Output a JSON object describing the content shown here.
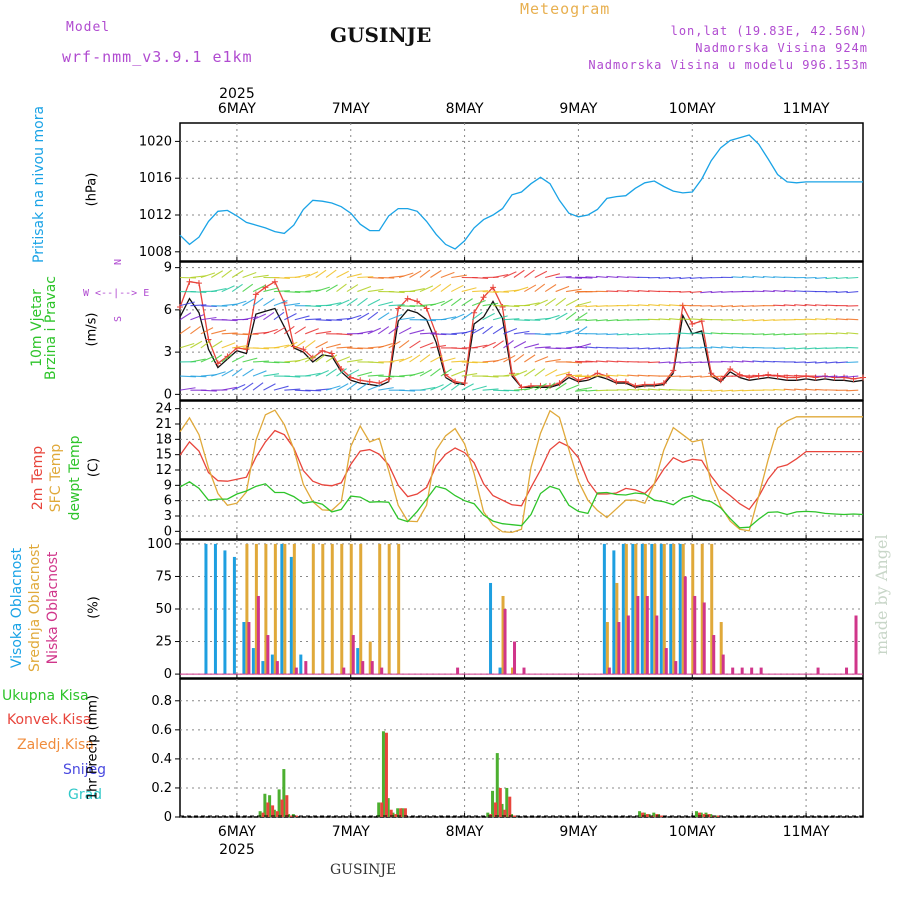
{
  "header": {
    "model_label": "Model",
    "model_name": "wrf-nmm_v3.9.1 e1km",
    "location": "GUSINJE",
    "product": "Meteogram",
    "coords": "lon,lat (19.83E, 42.56N)",
    "elevation": "Nadmorska Visina 924m",
    "model_elevation": "Nadmorska Visina u modelu 996.153m",
    "footer": "GUSINJE",
    "watermark": "made by Angel"
  },
  "time_axis": {
    "year": "2025",
    "days": [
      "6MAY",
      "7MAY",
      "8MAY",
      "9MAY",
      "10MAY",
      "11MAY"
    ],
    "range_hours": [
      0,
      144
    ]
  },
  "colors": {
    "pressure": "#1aa3e6",
    "temp_2m": "#e8453c",
    "temp_sfc": "#e0a93a",
    "dewpoint": "#2ec42a",
    "cloud_high": "#1e9fe0",
    "cloud_mid": "#e0a93a",
    "cloud_low": "#d0358a",
    "precip_total": "#4caf30",
    "precip_conv": "#e8453c",
    "precip_strat": "#f08c3c",
    "snow": "#4a4ae0",
    "hail": "#30c8c8",
    "wind_speed": "#111111",
    "wind_gust": "#e8453c"
  },
  "chart_data": [
    {
      "type": "line",
      "id": "pressure",
      "ylabel_left": "Pritisak na nivou mora",
      "ylabel": "(hPa)",
      "ylim": [
        1007,
        1022
      ],
      "yticks": [
        1008,
        1012,
        1016,
        1020
      ],
      "x": [
        0,
        2,
        4,
        6,
        8,
        10,
        12,
        14,
        16,
        18,
        20,
        22,
        24,
        26,
        28,
        30,
        32,
        34,
        36,
        38,
        40,
        42,
        44,
        46,
        48,
        50,
        52,
        54,
        56,
        58,
        60,
        62,
        64,
        66,
        68,
        70,
        72,
        74,
        76,
        78,
        80,
        82,
        84,
        86,
        88,
        90,
        92,
        94,
        96,
        98,
        100,
        102,
        104,
        106,
        108,
        110,
        112,
        114,
        116,
        118,
        120,
        122,
        124,
        126,
        128,
        130,
        132,
        134,
        136,
        138,
        140,
        142,
        144
      ],
      "series": [
        {
          "name": "pressure",
          "values": [
            1009.8,
            1008.8,
            1009.6,
            1011.3,
            1012.4,
            1012.5,
            1011.9,
            1011.2,
            1010.9,
            1010.6,
            1010.2,
            1010.0,
            1010.9,
            1012.6,
            1013.6,
            1013.5,
            1013.3,
            1012.9,
            1012.2,
            1011.0,
            1010.3,
            1010.3,
            1011.9,
            1012.7,
            1012.7,
            1012.4,
            1011.3,
            1009.9,
            1008.8,
            1008.3,
            1009.2,
            1010.6,
            1011.5,
            1012.0,
            1012.7,
            1014.2,
            1014.5,
            1015.4,
            1016.1,
            1015.4,
            1013.6,
            1012.2,
            1011.8,
            1012.0,
            1012.6,
            1013.8,
            1014.0,
            1014.1,
            1014.9,
            1015.5,
            1015.7,
            1015.1,
            1014.6,
            1014.4,
            1014.5,
            1015.9,
            1017.9,
            1019.3,
            1020.1,
            1020.4,
            1020.7,
            1019.7,
            1018.1,
            1016.4,
            1015.6,
            1015.5,
            1015.6,
            1015.6,
            1015.6,
            1015.6,
            1015.6,
            1015.6,
            1015.6
          ]
        }
      ]
    },
    {
      "type": "line",
      "id": "wind",
      "ylabel_left": [
        "10m Vjetar",
        "Brzina i Pravac"
      ],
      "ylabel": "(m/s)",
      "compass": [
        "N",
        "W <--|--> E",
        "S"
      ],
      "ylim": [
        -0.4,
        9.4
      ],
      "yticks": [
        0,
        3,
        6,
        9
      ],
      "x": [
        0,
        2,
        4,
        6,
        8,
        10,
        12,
        14,
        16,
        18,
        20,
        22,
        24,
        26,
        28,
        30,
        32,
        34,
        36,
        38,
        40,
        42,
        44,
        46,
        48,
        50,
        52,
        54,
        56,
        58,
        60,
        62,
        64,
        66,
        68,
        70,
        72,
        74,
        76,
        78,
        80,
        82,
        84,
        86,
        88,
        90,
        92,
        94,
        96,
        98,
        100,
        102,
        104,
        106,
        108,
        110,
        112,
        114,
        116,
        118,
        120,
        122,
        124,
        126,
        128,
        130,
        132,
        134,
        136,
        138,
        140,
        142,
        144
      ],
      "series": [
        {
          "name": "speed",
          "values": [
            5.5,
            6.8,
            5.8,
            3.2,
            1.9,
            2.5,
            3.1,
            2.9,
            5.7,
            5.9,
            6.1,
            4.8,
            3.3,
            3.0,
            2.3,
            2.8,
            2.7,
            1.6,
            1.0,
            0.8,
            0.7,
            0.6,
            0.9,
            5.2,
            6.0,
            5.8,
            5.3,
            3.7,
            1.2,
            0.8,
            0.7,
            5.0,
            5.5,
            6.6,
            5.4,
            1.3,
            0.5,
            0.5,
            0.5,
            0.5,
            0.7,
            1.2,
            0.9,
            1.0,
            1.3,
            1.1,
            0.8,
            0.8,
            0.5,
            0.6,
            0.6,
            0.7,
            1.5,
            5.6,
            4.3,
            4.5,
            1.3,
            0.9,
            1.6,
            1.2,
            1.0,
            1.1,
            1.2,
            1.1,
            1.0,
            1.0,
            1.1,
            1.0,
            1.1,
            1.0,
            1.0,
            0.9,
            1.0
          ]
        },
        {
          "name": "gust",
          "values": [
            6.2,
            8.0,
            7.9,
            3.9,
            2.2,
            2.7,
            3.3,
            3.2,
            7.1,
            7.6,
            8.0,
            6.5,
            3.4,
            3.2,
            2.6,
            3.1,
            2.9,
            1.8,
            1.2,
            1.0,
            0.9,
            0.8,
            1.1,
            6.1,
            6.8,
            6.6,
            6.1,
            4.3,
            1.4,
            0.9,
            0.8,
            5.8,
            6.9,
            7.6,
            6.2,
            1.5,
            0.5,
            0.6,
            0.6,
            0.6,
            0.8,
            1.4,
            1.0,
            1.2,
            1.5,
            1.3,
            0.9,
            0.9,
            0.6,
            0.7,
            0.7,
            0.8,
            1.7,
            6.3,
            5.0,
            5.2,
            1.5,
            1.0,
            1.8,
            1.4,
            1.2,
            1.3,
            1.4,
            1.3,
            1.2,
            1.2,
            1.3,
            1.2,
            1.3,
            1.2,
            1.2,
            1.1,
            1.2
          ]
        }
      ]
    },
    {
      "type": "line",
      "id": "temperature",
      "ylabel_left": [
        "2m Temp",
        "SFC Temp",
        "dewpt Temp"
      ],
      "ylabel": "(C)",
      "ylim": [
        -1.5,
        25.5
      ],
      "yticks": [
        0,
        3,
        6,
        9,
        12,
        15,
        18,
        21,
        24
      ],
      "x": [
        0,
        2,
        4,
        6,
        8,
        10,
        12,
        14,
        16,
        18,
        20,
        22,
        24,
        26,
        28,
        30,
        32,
        34,
        36,
        38,
        40,
        42,
        44,
        46,
        48,
        50,
        52,
        54,
        56,
        58,
        60,
        62,
        64,
        66,
        68,
        70,
        72,
        74,
        76,
        78,
        80,
        82,
        84,
        86,
        88,
        90,
        92,
        94,
        96,
        98,
        100,
        102,
        104,
        106,
        108,
        110,
        112,
        114,
        116,
        118,
        120,
        122,
        124,
        126,
        128,
        130,
        132,
        134,
        136,
        138,
        140,
        142,
        144
      ],
      "series": [
        {
          "name": "2m Temp",
          "values": [
            14.9,
            17.5,
            15.7,
            11.5,
            9.9,
            9.8,
            10.2,
            10.6,
            14.5,
            17.5,
            19.7,
            18.9,
            16.3,
            11.9,
            9.8,
            9.1,
            8.9,
            9.5,
            13.1,
            15.7,
            16.0,
            15.1,
            13.0,
            9.0,
            6.8,
            7.3,
            8.6,
            12.8,
            15.1,
            16.3,
            15.4,
            13.4,
            9.3,
            7.0,
            6.1,
            5.2,
            5.0,
            8.6,
            12.0,
            16.0,
            17.5,
            16.6,
            14.4,
            9.8,
            7.3,
            7.3,
            7.5,
            8.4,
            8.1,
            7.4,
            9.3,
            12.2,
            14.4,
            13.5,
            14.1,
            13.9,
            10.8,
            8.4,
            7.0,
            5.4,
            4.3,
            6.8,
            10.2,
            12.5,
            13.0,
            14.2,
            15.6,
            15.6,
            15.6,
            15.6,
            15.6,
            15.6,
            15.6
          ]
        },
        {
          "name": "SFC Temp",
          "values": [
            19.5,
            22.2,
            18.9,
            12.4,
            7.4,
            5.1,
            5.5,
            7.7,
            17.8,
            22.8,
            23.7,
            20.9,
            16.1,
            9.2,
            5.8,
            4.2,
            4.1,
            5.8,
            16.6,
            20.6,
            17.5,
            18.2,
            11.9,
            5.1,
            2.0,
            1.9,
            5.1,
            15.9,
            18.7,
            20.1,
            17.1,
            11.3,
            3.8,
            1.2,
            -0.1,
            -0.2,
            0.4,
            12.5,
            19.2,
            23.6,
            22.3,
            16.0,
            9.8,
            6.1,
            4.1,
            2.7,
            4.4,
            6.1,
            6.1,
            5.5,
            9.3,
            15.9,
            20.3,
            18.9,
            17.5,
            17.9,
            9.3,
            4.9,
            2.0,
            0.4,
            0.1,
            6.9,
            14.0,
            20.2,
            21.6,
            22.4,
            22.4,
            22.4,
            22.4,
            22.4,
            22.4,
            22.4,
            22.4
          ]
        },
        {
          "name": "dewpt Temp",
          "values": [
            8.7,
            9.7,
            8.4,
            6.1,
            6.3,
            6.3,
            7.3,
            7.9,
            8.8,
            9.3,
            7.6,
            7.6,
            6.8,
            5.5,
            5.8,
            5.3,
            3.8,
            4.3,
            6.9,
            6.7,
            5.7,
            5.8,
            5.7,
            2.5,
            1.9,
            3.9,
            6.3,
            8.8,
            8.3,
            7.0,
            6.0,
            5.4,
            3.2,
            2.0,
            1.5,
            1.3,
            1.1,
            3.3,
            7.4,
            8.8,
            8.2,
            5.1,
            3.9,
            3.5,
            7.5,
            7.6,
            7.2,
            7.1,
            7.5,
            7.3,
            6.1,
            5.8,
            5.2,
            6.5,
            7.0,
            6.2,
            5.8,
            4.6,
            2.5,
            0.7,
            0.8,
            2.4,
            3.7,
            3.8,
            3.3,
            3.8,
            3.9,
            3.8,
            3.5,
            3.4,
            3.3,
            3.4,
            3.3
          ]
        }
      ]
    },
    {
      "type": "bar",
      "id": "clouds",
      "ylabel_left": [
        "Visoka Oblacnost",
        "Srednja Oblacnost",
        "Niska Oblacnost"
      ],
      "ylabel": "(%)",
      "ylim": [
        -3,
        103
      ],
      "yticks": [
        0,
        25,
        50,
        75,
        100
      ],
      "x": [
        6,
        8,
        10,
        12,
        14,
        16,
        18,
        20,
        22,
        24,
        26,
        28,
        30,
        32,
        34,
        36,
        38,
        40,
        42,
        44,
        46,
        48,
        50,
        52,
        54,
        56,
        58,
        60,
        62,
        64,
        66,
        68,
        70,
        72,
        74,
        76,
        78,
        80,
        82,
        84,
        86,
        88,
        90,
        92,
        94,
        96,
        98,
        100,
        102,
        104,
        106,
        108,
        110,
        112,
        114,
        116,
        118,
        120,
        122,
        124,
        126,
        128,
        130,
        132,
        134,
        136,
        138,
        140,
        142
      ],
      "series": [
        {
          "name": "Visoka Oblacnost",
          "values": [
            100,
            100,
            95,
            90,
            40,
            20,
            10,
            15,
            100,
            90,
            15,
            0,
            0,
            0,
            0,
            0,
            20,
            0,
            0,
            0,
            0,
            0,
            0,
            0,
            0,
            0,
            0,
            0,
            0,
            0,
            70,
            5,
            0,
            0,
            0,
            0,
            0,
            0,
            0,
            0,
            0,
            0,
            100,
            95,
            100,
            100,
            100,
            100,
            100,
            100,
            100,
            0,
            0,
            0,
            0,
            0,
            0,
            0,
            0,
            0,
            0,
            0,
            0,
            0,
            0,
            0,
            0,
            0,
            0
          ]
        },
        {
          "name": "Srednja Oblacnost",
          "values": [
            0,
            0,
            0,
            0,
            100,
            100,
            100,
            100,
            100,
            100,
            0,
            100,
            100,
            100,
            100,
            100,
            100,
            25,
            100,
            100,
            100,
            0,
            0,
            0,
            0,
            0,
            0,
            0,
            0,
            0,
            0,
            60,
            5,
            0,
            0,
            0,
            0,
            0,
            0,
            0,
            0,
            0,
            40,
            70,
            100,
            100,
            100,
            100,
            100,
            100,
            100,
            100,
            100,
            100,
            40,
            0,
            0,
            0,
            0,
            0,
            0,
            0,
            0,
            0,
            0,
            0,
            0,
            0,
            0
          ]
        },
        {
          "name": "Niska Oblacnost",
          "values": [
            0,
            0,
            0,
            0,
            40,
            60,
            30,
            10,
            0,
            5,
            10,
            0,
            0,
            0,
            5,
            30,
            10,
            10,
            5,
            0,
            0,
            0,
            0,
            0,
            0,
            0,
            5,
            0,
            0,
            0,
            0,
            50,
            25,
            5,
            0,
            0,
            0,
            0,
            0,
            0,
            0,
            0,
            5,
            40,
            45,
            60,
            60,
            45,
            20,
            10,
            75,
            60,
            55,
            30,
            15,
            5,
            5,
            5,
            5,
            0,
            0,
            0,
            0,
            0,
            5,
            0,
            0,
            5,
            45
          ]
        }
      ]
    },
    {
      "type": "bar",
      "id": "precip",
      "ylabel": "1hr Precip (mm)",
      "legend": [
        "Ukupna Kisa",
        "Konvek.Kisa",
        "Zaledj.Kisa",
        "Snijeg",
        "Grad"
      ],
      "ylim": [
        0,
        0.95
      ],
      "yticks": [
        0,
        0.2,
        0.4,
        0.6,
        0.8
      ],
      "x": [
        17,
        18,
        19,
        20,
        21,
        22,
        23,
        24,
        42,
        43,
        44,
        45,
        46,
        47,
        65,
        66,
        67,
        68,
        69,
        70,
        97,
        98,
        99,
        100,
        101,
        109,
        110,
        111,
        112,
        113
      ],
      "series": [
        {
          "name": "Ukupna Kisa",
          "values": [
            0.04,
            0.16,
            0.15,
            0.05,
            0.19,
            0.33,
            0.02,
            0.02,
            0.1,
            0.59,
            0.13,
            0.03,
            0.06,
            0.06,
            0.03,
            0.18,
            0.44,
            0.09,
            0.2,
            0.02,
            0.04,
            0.03,
            0.02,
            0.03,
            0.02,
            0.04,
            0.03,
            0.03,
            0.02,
            0.01
          ]
        },
        {
          "name": "Konvek.Kisa",
          "values": [
            0.03,
            0.1,
            0.08,
            0.04,
            0.12,
            0.15,
            0.01,
            0.01,
            0.1,
            0.58,
            0.05,
            0.02,
            0.06,
            0.06,
            0.02,
            0.1,
            0.2,
            0.05,
            0.14,
            0.01,
            0.03,
            0.02,
            0.01,
            0.02,
            0.01,
            0.03,
            0.02,
            0.02,
            0.01,
            0.01
          ]
        }
      ]
    }
  ]
}
